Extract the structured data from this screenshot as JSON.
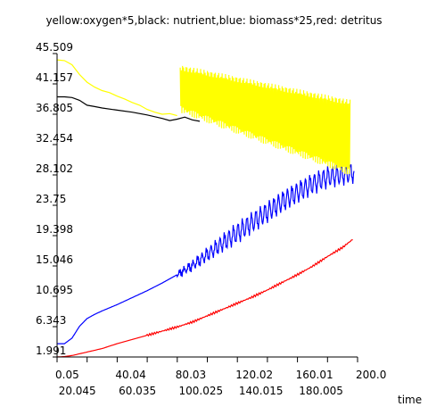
{
  "chart_data": {
    "type": "line",
    "title": "yellow:oxygen*5,black: nutrient,blue: biomass*25,red: detritus",
    "xlabel": "time",
    "ylabel": "",
    "xlim": [
      0.05,
      200.0
    ],
    "ylim": [
      1.991,
      45.509
    ],
    "yticks": [
      "45.509",
      "41.157",
      "36.805",
      "32.454",
      "28.102",
      "23.75",
      "19.398",
      "15.046",
      "10.695",
      "6.343",
      "1.991"
    ],
    "xticks_top": [
      "0.05",
      "40.04",
      "80.03",
      "120.02",
      "160.01",
      "200.0"
    ],
    "xticks_bottom": [
      "20.045",
      "60.035",
      "100.025",
      "140.015",
      "180.005"
    ],
    "grid": false,
    "series": [
      {
        "color": "#ffff00",
        "x": [
          0.05,
          5,
          10,
          15,
          20,
          25,
          30,
          35,
          40,
          45,
          50,
          55,
          60,
          65,
          70,
          75,
          80
        ],
        "y": [
          44.6,
          44.5,
          43.9,
          42.5,
          41.4,
          40.7,
          40.2,
          39.9,
          39.4,
          39.0,
          38.5,
          38.1,
          37.5,
          37.1,
          36.8,
          36.9,
          36.6
        ],
        "osc": {
          "x_start": 82,
          "x_end": 195,
          "upper": [
            43.5,
            38.5
          ],
          "lower": [
            37.5,
            28.5
          ]
        }
      },
      {
        "color": "#000000",
        "x": [
          0.05,
          5,
          10,
          15,
          20,
          25,
          30,
          40,
          50,
          60,
          70,
          75,
          80,
          85,
          90,
          95
        ],
        "y": [
          39.3,
          39.3,
          39.2,
          38.8,
          38.1,
          37.9,
          37.7,
          37.4,
          37.1,
          36.7,
          36.2,
          35.9,
          36.1,
          36.4,
          36.0,
          35.8
        ]
      },
      {
        "color": "#0000ff",
        "x": [
          0.05,
          5,
          10,
          15,
          20,
          25,
          30,
          40,
          50,
          60,
          70,
          80,
          90,
          100,
          110,
          120,
          130,
          140,
          150,
          160,
          170,
          180,
          190,
          198
        ],
        "y": [
          3.9,
          3.9,
          4.7,
          6.4,
          7.5,
          8.1,
          8.6,
          9.5,
          10.5,
          11.5,
          12.6,
          13.8,
          15.1,
          16.7,
          18.3,
          19.8,
          21.3,
          22.8,
          24.3,
          25.6,
          26.8,
          27.8,
          28.2,
          28.5
        ],
        "osc_amp": 1.0
      },
      {
        "color": "#ff0000",
        "x": [
          0.05,
          5,
          10,
          20,
          30,
          40,
          50,
          60,
          70,
          80,
          90,
          100,
          110,
          120,
          130,
          140,
          150,
          160,
          170,
          180,
          190,
          197
        ],
        "y": [
          1.991,
          2.05,
          2.2,
          2.7,
          3.2,
          3.9,
          4.5,
          5.1,
          5.7,
          6.3,
          7.0,
          7.9,
          8.8,
          9.7,
          10.6,
          11.6,
          12.7,
          13.8,
          15.0,
          16.4,
          17.7,
          18.9
        ]
      }
    ]
  }
}
